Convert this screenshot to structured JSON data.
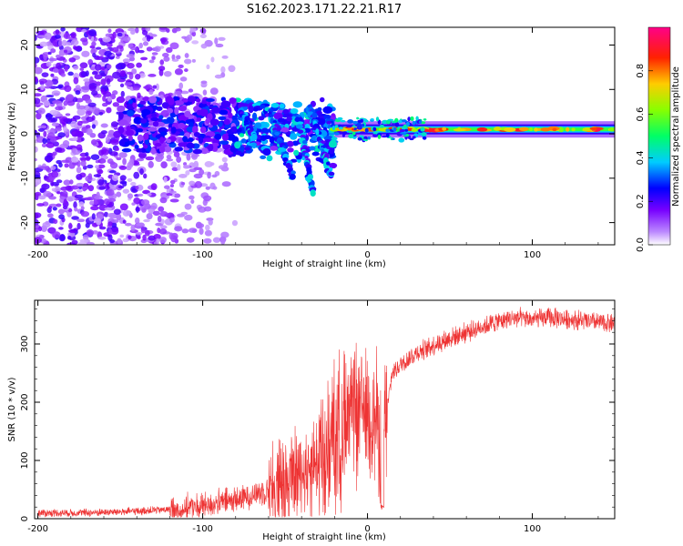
{
  "chart_data": [
    {
      "type": "heatmap",
      "title": "S162.2023.171.22.21.R17",
      "xlabel": "Height of straight line (km)",
      "ylabel": "Frequency (Hz)",
      "xlim": [
        -202,
        150
      ],
      "ylim": [
        -25,
        24
      ],
      "xticks": [
        -200,
        -100,
        0,
        100
      ],
      "yticks": [
        -20,
        -10,
        0,
        10,
        20
      ],
      "colorbar": {
        "label": "Normalized spectral amplitude",
        "range": [
          0,
          1
        ],
        "ticks": [
          "0.0",
          "0.2",
          "0.4",
          "0.6",
          "0.8"
        ]
      },
      "features": {
        "noise_region_x": [
          -202,
          -105
        ],
        "chirp_region_x": [
          -100,
          -20
        ],
        "carrier_x": [
          -20,
          150
        ],
        "carrier_freq_hz": 1,
        "carrier_peak_amplitude": 0.9
      }
    },
    {
      "type": "line",
      "xlabel": "Height of straight line (km)",
      "ylabel": "SNR (10 * v/v)",
      "xlim": [
        -202,
        150
      ],
      "ylim": [
        0,
        375
      ],
      "xticks": [
        -200,
        -100,
        0,
        100
      ],
      "yticks": [
        0,
        100,
        200,
        300
      ],
      "series": [
        {
          "name": "SNR",
          "color": "#ee3333",
          "x": [
            -200,
            -180,
            -160,
            -140,
            -120,
            -100,
            -90,
            -80,
            -70,
            -60,
            -50,
            -40,
            -30,
            -20,
            -15,
            -10,
            -5,
            0,
            5,
            10,
            15,
            20,
            25,
            30,
            40,
            50,
            60,
            70,
            80,
            90,
            100,
            110,
            120,
            130,
            140,
            150
          ],
          "values": [
            10,
            10,
            11,
            13,
            16,
            22,
            27,
            32,
            40,
            50,
            62,
            80,
            100,
            130,
            150,
            170,
            185,
            195,
            170,
            150,
            250,
            265,
            275,
            285,
            298,
            310,
            320,
            330,
            340,
            345,
            342,
            345,
            343,
            340,
            337,
            335
          ]
        }
      ]
    }
  ]
}
